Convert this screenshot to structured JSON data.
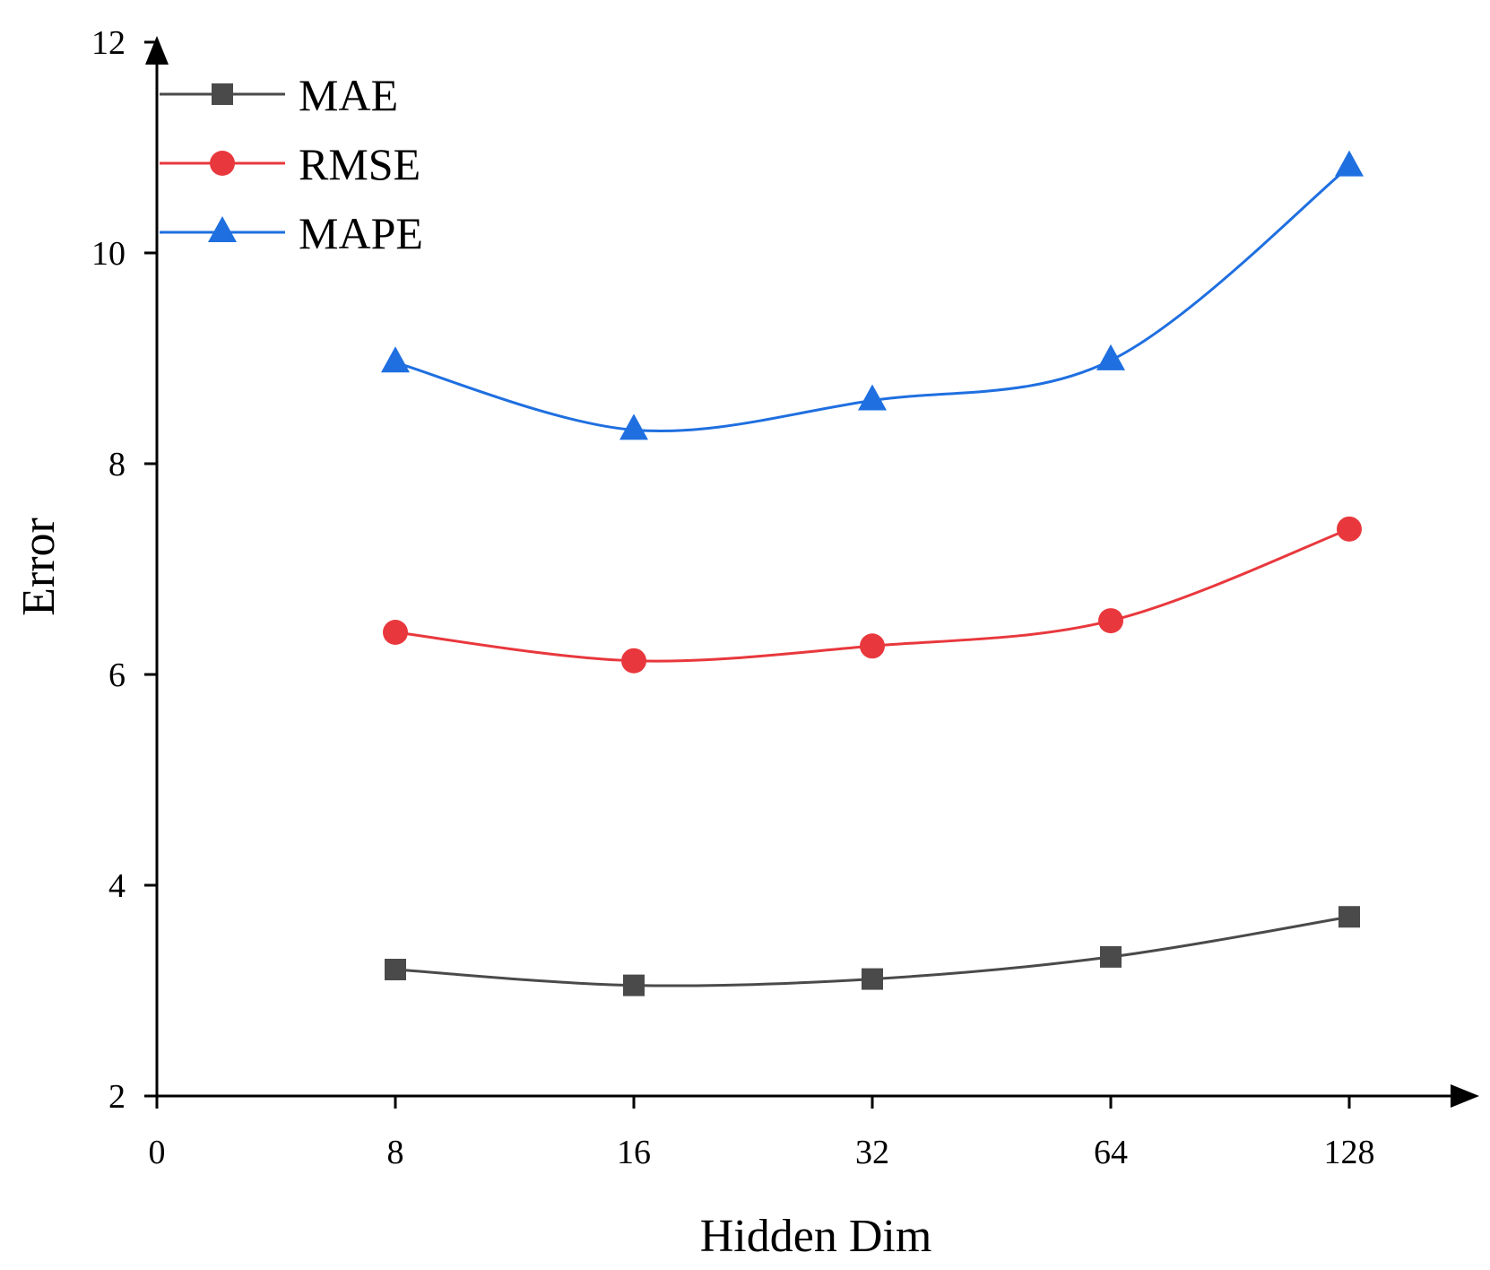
{
  "chart_data": {
    "type": "line",
    "title": "",
    "xlabel": "Hidden Dim",
    "ylabel": "Error",
    "x_tick_labels": [
      "0",
      "8",
      "16",
      "32",
      "64",
      "128"
    ],
    "y_tick_labels": [
      "2",
      "4",
      "6",
      "8",
      "10",
      "12"
    ],
    "ylim": [
      2,
      12
    ],
    "categories": [
      "8",
      "16",
      "32",
      "64",
      "128"
    ],
    "legend_position": "top-left",
    "grid": false,
    "series": [
      {
        "name": "MAE",
        "marker": "square",
        "color": "#4a4a4a",
        "values": [
          3.2,
          3.05,
          3.11,
          3.32,
          3.7
        ]
      },
      {
        "name": "RMSE",
        "marker": "circle",
        "color": "#e8383d",
        "values": [
          6.4,
          6.13,
          6.27,
          6.51,
          7.38
        ]
      },
      {
        "name": "MAPE",
        "marker": "triangle",
        "color": "#1f6fe0",
        "values": [
          8.96,
          8.32,
          8.6,
          8.98,
          10.82
        ]
      }
    ]
  }
}
